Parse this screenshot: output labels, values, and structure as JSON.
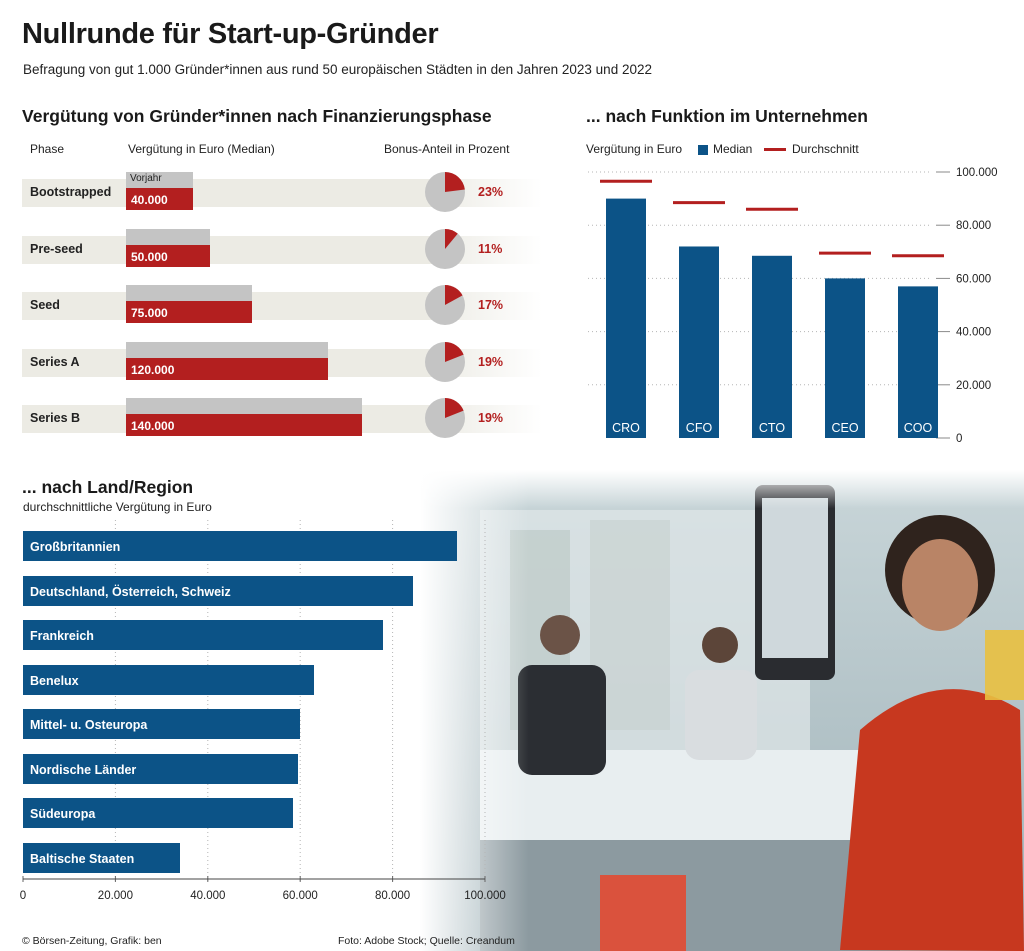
{
  "header": {
    "title": "Nullrunde für Start-up-Gründer",
    "subtitle": "Befragung von gut 1.000 Gründer*innen aus rund 50 europäischen Städten in den Jahren 2023 und 2022"
  },
  "phase_section": {
    "title": "Vergütung von Gründer*innen nach Finanzierungsphase",
    "col_phase": "Phase",
    "col_salary": "Vergütung in Euro (Median)",
    "col_bonus": "Bonus-Anteil in Prozent",
    "prev_year_label": "Vorjahr"
  },
  "function_section": {
    "title": "... nach Funktion im Unternehmen",
    "axis_label": "Vergütung in Euro",
    "legend_median": "Median",
    "legend_average": "Durchschnitt"
  },
  "region_section": {
    "title": "... nach Land/Region",
    "subtitle": "durchschnittliche Vergütung in Euro"
  },
  "footer": {
    "left": "© Börsen-Zeitung, Grafik: ben",
    "right": "Foto: Adobe Stock; Quelle: Creandum"
  },
  "colors": {
    "blue": "#0c5387",
    "red": "#b31f1f",
    "grey": "#c4c4c4",
    "strip": "#ecebe4"
  },
  "chart_data": [
    {
      "type": "bar",
      "orientation": "horizontal",
      "title": "Vergütung von Gründer*innen nach Finanzierungsphase",
      "categories": [
        "Bootstrapped",
        "Pre-seed",
        "Seed",
        "Series A",
        "Series B"
      ],
      "series": [
        {
          "name": "Vorjahr",
          "values": [
            40000,
            50000,
            75000,
            120000,
            140000
          ]
        },
        {
          "values": [
            40000,
            50000,
            75000,
            120000,
            140000
          ]
        }
      ],
      "value_labels": [
        "40.000",
        "50.000",
        "75.000",
        "120.000",
        "140.000"
      ],
      "xlim": [
        0,
        140000
      ]
    },
    {
      "type": "pie",
      "title": "Bonus-Anteil in Prozent",
      "categories": [
        "Bootstrapped",
        "Pre-seed",
        "Seed",
        "Series A",
        "Series B"
      ],
      "values": [
        23,
        11,
        17,
        19,
        19
      ],
      "labels": [
        "23%",
        "11%",
        "17%",
        "19%",
        "19%"
      ]
    },
    {
      "type": "bar",
      "title": "... nach Funktion im Unternehmen",
      "ylabel": "Vergütung in Euro",
      "categories": [
        "CRO",
        "CFO",
        "CTO",
        "CEO",
        "COO"
      ],
      "series": [
        {
          "name": "Median",
          "values": [
            90000,
            72000,
            68500,
            60000,
            57000
          ]
        },
        {
          "name": "Durchschnitt",
          "values": [
            96500,
            88500,
            86000,
            69500,
            68500
          ]
        }
      ],
      "ylim": [
        0,
        100000
      ],
      "yticks": [
        0,
        20000,
        40000,
        60000,
        80000,
        100000
      ],
      "ytick_labels": [
        "0",
        "20.000",
        "40.000",
        "60.000",
        "80.000",
        "100.000"
      ],
      "legend": "top"
    },
    {
      "type": "bar",
      "orientation": "horizontal",
      "title": "... nach Land/Region",
      "subtitle": "durchschnittliche Vergütung in Euro",
      "categories": [
        "Großbritannien",
        "Deutschland, Österreich, Schweiz",
        "Frankreich",
        "Benelux",
        "Mittel- u. Osteuropa",
        "Nordische Länder",
        "Südeuropa",
        "Baltische Staaten"
      ],
      "values": [
        94000,
        84500,
        78000,
        63000,
        60000,
        59500,
        58500,
        34000
      ],
      "xlim": [
        0,
        100000
      ],
      "xticks": [
        0,
        20000,
        40000,
        60000,
        80000,
        100000
      ],
      "xtick_labels": [
        "0",
        "20.000",
        "40.000",
        "60.000",
        "80.000",
        "100.000"
      ]
    }
  ]
}
